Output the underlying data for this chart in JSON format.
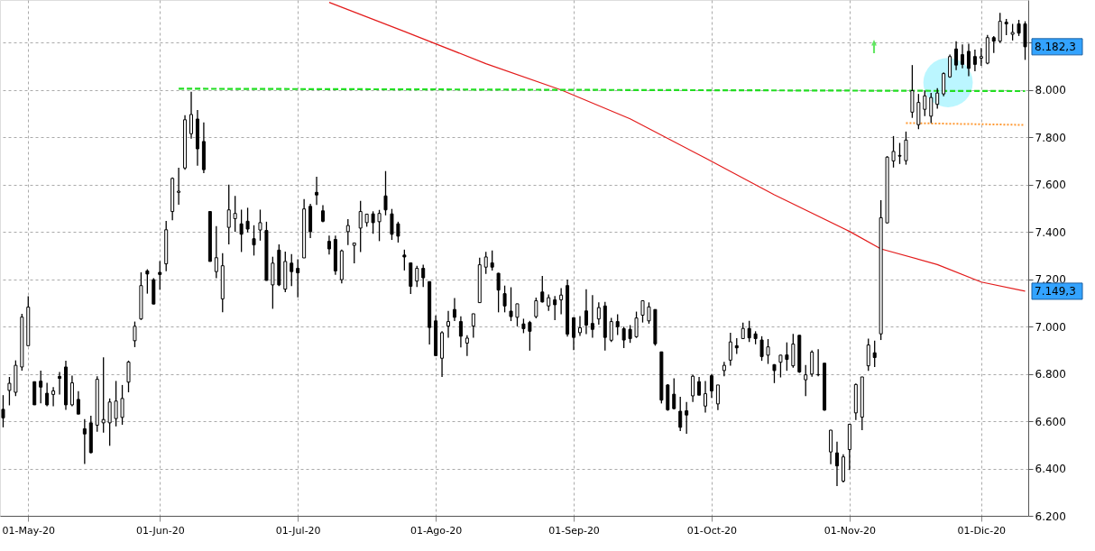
{
  "chart_data": {
    "type": "candlestick",
    "categories": [
      null,
      null,
      null,
      null,
      "01-May-20",
      null,
      null,
      null,
      null,
      null,
      null,
      null,
      null,
      null,
      null,
      null,
      null,
      null,
      null,
      null,
      null,
      null,
      null,
      null,
      null,
      "01-Jun-20",
      null,
      null,
      null,
      null,
      null,
      null,
      null,
      null,
      null,
      null,
      null,
      null,
      null,
      null,
      null,
      null,
      null,
      null,
      null,
      null,
      null,
      "01-Jul-20",
      null,
      null,
      null,
      null,
      null,
      null,
      null,
      null,
      null,
      null,
      null,
      null,
      null,
      null,
      null,
      null,
      null,
      null,
      null,
      null,
      null,
      "01-Ago-20",
      null,
      null,
      null,
      null,
      null,
      null,
      null,
      null,
      null,
      null,
      null,
      null,
      null,
      null,
      null,
      null,
      null,
      null,
      null,
      null,
      null,
      "01-Sep-20",
      null,
      null,
      null,
      null,
      null,
      null,
      null,
      null,
      null,
      null,
      null,
      null,
      null,
      null,
      null,
      null,
      null,
      null,
      null,
      null,
      null,
      "01-Oct-20",
      null,
      null,
      null,
      null,
      null,
      null,
      null,
      null,
      null,
      null,
      null,
      null,
      null,
      null,
      null,
      null,
      null,
      null,
      null,
      null,
      null,
      "01-Nov-20",
      null,
      null,
      null,
      null,
      null,
      null,
      null,
      null,
      null,
      null,
      null,
      null,
      null,
      null,
      null,
      null,
      null,
      null,
      null,
      null,
      "01-Dic-20",
      null,
      null,
      null,
      null,
      null,
      null,
      null
    ],
    "ohlc": [
      [
        6650,
        6710,
        6574,
        6614
      ],
      [
        6730,
        6787,
        6667,
        6760
      ],
      [
        6722,
        6857,
        6706,
        6836
      ],
      [
        6829,
        7054,
        6814,
        7040
      ],
      [
        6919,
        7128,
        6919,
        7082
      ],
      [
        6767,
        6767,
        6669,
        6669
      ],
      [
        6769,
        6814,
        6675,
        6744
      ],
      [
        6718,
        6762,
        6663,
        6669
      ],
      [
        6713,
        6744,
        6663,
        6728
      ],
      [
        6789,
        6808,
        6713,
        6781
      ],
      [
        6829,
        6856,
        6648,
        6669
      ],
      [
        6669,
        6793,
        6663,
        6762
      ],
      [
        6692,
        6727,
        6630,
        6630
      ],
      [
        6568,
        6609,
        6419,
        6546
      ],
      [
        6593,
        6623,
        6464,
        6467
      ],
      [
        6583,
        6790,
        6555,
        6777
      ],
      [
        6593,
        6870,
        6552,
        6607
      ],
      [
        6593,
        6696,
        6496,
        6681
      ],
      [
        6611,
        6770,
        6578,
        6685
      ],
      [
        6616,
        6753,
        6585,
        6696
      ],
      [
        6765,
        6856,
        6722,
        6850
      ],
      [
        6940,
        7021,
        6913,
        7001
      ],
      [
        7032,
        7229,
        7028,
        7173
      ],
      [
        7235,
        7242,
        7139,
        7222
      ],
      [
        7198,
        7204,
        7095,
        7095
      ],
      [
        7229,
        7277,
        7156,
        7220
      ],
      [
        7265,
        7446,
        7234,
        7409
      ],
      [
        7486,
        7630,
        7449,
        7626
      ],
      [
        7567,
        7671,
        7515,
        7572
      ],
      [
        7670,
        7893,
        7663,
        7874
      ],
      [
        7815,
        7992,
        7794,
        7896
      ],
      [
        7877,
        7915,
        7680,
        7751
      ],
      [
        7782,
        7863,
        7648,
        7663
      ],
      [
        7486,
        7486,
        7275,
        7275
      ],
      [
        7232,
        7424,
        7204,
        7291
      ],
      [
        7117,
        7310,
        7060,
        7257
      ],
      [
        7419,
        7600,
        7347,
        7493
      ],
      [
        7456,
        7552,
        7401,
        7478
      ],
      [
        7434,
        7494,
        7315,
        7390
      ],
      [
        7445,
        7502,
        7398,
        7412
      ],
      [
        7371,
        7428,
        7300,
        7345
      ],
      [
        7408,
        7494,
        7363,
        7439
      ],
      [
        7406,
        7443,
        7194,
        7195
      ],
      [
        7176,
        7295,
        7075,
        7268
      ],
      [
        7323,
        7347,
        7171,
        7176
      ],
      [
        7158,
        7317,
        7145,
        7275
      ],
      [
        7268,
        7306,
        7171,
        7232
      ],
      [
        7246,
        7284,
        7123,
        7227
      ],
      [
        7290,
        7539,
        7290,
        7497
      ],
      [
        7508,
        7519,
        7374,
        7401
      ],
      [
        7567,
        7633,
        7514,
        7556
      ],
      [
        7489,
        7513,
        7441,
        7445
      ],
      [
        7360,
        7384,
        7304,
        7328
      ],
      [
        7368,
        7384,
        7219,
        7235
      ],
      [
        7198,
        7325,
        7182,
        7320
      ],
      [
        7401,
        7454,
        7344,
        7427
      ],
      [
        7343,
        7354,
        7267,
        7353
      ],
      [
        7416,
        7531,
        7315,
        7486
      ],
      [
        7439,
        7475,
        7422,
        7475
      ],
      [
        7476,
        7487,
        7392,
        7439
      ],
      [
        7443,
        7493,
        7361,
        7478
      ],
      [
        7552,
        7657,
        7470,
        7493
      ],
      [
        7476,
        7497,
        7366,
        7390
      ],
      [
        7434,
        7443,
        7355,
        7382
      ],
      [
        7302,
        7325,
        7237,
        7294
      ],
      [
        7269,
        7269,
        7138,
        7170
      ],
      [
        7192,
        7257,
        7167,
        7246
      ],
      [
        7246,
        7261,
        7167,
        7206
      ],
      [
        7190,
        7190,
        6924,
        6996
      ],
      [
        7024,
        7047,
        6876,
        6877
      ],
      [
        6866,
        6980,
        6787,
        6974
      ],
      [
        7002,
        7066,
        6953,
        7021
      ],
      [
        7072,
        7120,
        7023,
        7039
      ],
      [
        7021,
        7043,
        6912,
        6959
      ],
      [
        6930,
        6963,
        6876,
        6951
      ],
      [
        7002,
        7054,
        6953,
        7054
      ],
      [
        7101,
        7291,
        7101,
        7261
      ],
      [
        7251,
        7316,
        7222,
        7294
      ],
      [
        7269,
        7321,
        7237,
        7251
      ],
      [
        7225,
        7227,
        7060,
        7154
      ],
      [
        7139,
        7173,
        7060,
        7087
      ],
      [
        7065,
        7166,
        7023,
        7042
      ],
      [
        7039,
        7096,
        7001,
        7096
      ],
      [
        7011,
        7033,
        6972,
        6991
      ],
      [
        7017,
        7024,
        6898,
        6980
      ],
      [
        7042,
        7122,
        7035,
        7109
      ],
      [
        7146,
        7214,
        7101,
        7104
      ],
      [
        7087,
        7136,
        7066,
        7122
      ],
      [
        7113,
        7129,
        7027,
        7092
      ],
      [
        7113,
        7162,
        7052,
        7133
      ],
      [
        7173,
        7199,
        6957,
        6968
      ],
      [
        7037,
        7039,
        6900,
        6954
      ],
      [
        6974,
        7044,
        6960,
        6995
      ],
      [
        7066,
        7158,
        6968,
        7006
      ],
      [
        7013,
        7133,
        6953,
        6988
      ],
      [
        7032,
        7102,
        7008,
        7080
      ],
      [
        7087,
        7104,
        6898,
        6954
      ],
      [
        6942,
        7037,
        6935,
        7021
      ],
      [
        7021,
        7052,
        6964,
        6999
      ],
      [
        6991,
        6999,
        6909,
        6943
      ],
      [
        6988,
        7006,
        6931,
        6949
      ],
      [
        6957,
        7063,
        6952,
        7036
      ],
      [
        7048,
        7109,
        7017,
        7109
      ],
      [
        7024,
        7102,
        7012,
        7083
      ],
      [
        7072,
        7072,
        6919,
        6927
      ],
      [
        6893,
        6893,
        6675,
        6689
      ],
      [
        6753,
        6756,
        6644,
        6648
      ],
      [
        6714,
        6781,
        6650,
        6653
      ],
      [
        6642,
        6703,
        6558,
        6574
      ],
      [
        6644,
        6681,
        6547,
        6626
      ],
      [
        6707,
        6796,
        6681,
        6790
      ],
      [
        6767,
        6787,
        6710,
        6710
      ],
      [
        6664,
        6770,
        6636,
        6716
      ],
      [
        6792,
        6799,
        6698,
        6728
      ],
      [
        6673,
        6753,
        6647,
        6753
      ],
      [
        6814,
        6851,
        6790,
        6836
      ],
      [
        6858,
        6974,
        6835,
        6935
      ],
      [
        6919,
        6951,
        6884,
        6910
      ],
      [
        6949,
        7017,
        6949,
        6992
      ],
      [
        6992,
        7024,
        6935,
        6952
      ],
      [
        6969,
        6980,
        6925,
        6949
      ],
      [
        6943,
        6959,
        6855,
        6873
      ],
      [
        6879,
        6947,
        6842,
        6914
      ],
      [
        6839,
        6841,
        6761,
        6814
      ],
      [
        6849,
        6880,
        6785,
        6879
      ],
      [
        6880,
        6933,
        6813,
        6861
      ],
      [
        6834,
        6969,
        6826,
        6926
      ],
      [
        6963,
        6963,
        6804,
        6808
      ],
      [
        6775,
        6837,
        6706,
        6796
      ],
      [
        6799,
        6899,
        6788,
        6892
      ],
      [
        6797,
        6904,
        6790,
        6796
      ],
      [
        6845,
        6845,
        6644,
        6647
      ],
      [
        6470,
        6563,
        6418,
        6562
      ],
      [
        6466,
        6513,
        6326,
        6411
      ],
      [
        6347,
        6460,
        6341,
        6449
      ],
      [
        6480,
        6589,
        6393,
        6587
      ],
      [
        6635,
        6759,
        6605,
        6755
      ],
      [
        6617,
        6787,
        6562,
        6787
      ],
      [
        6834,
        6949,
        6813,
        6922
      ],
      [
        6889,
        6940,
        6829,
        6869
      ],
      [
        6969,
        7534,
        6943,
        7460
      ],
      [
        7438,
        7720,
        7437,
        7716
      ],
      [
        7700,
        7805,
        7672,
        7740
      ],
      [
        7720,
        7776,
        7687,
        7723
      ],
      [
        7701,
        7824,
        7684,
        7788
      ],
      [
        7906,
        8105,
        7882,
        7997
      ],
      [
        7853,
        7983,
        7834,
        7947
      ],
      [
        7918,
        7997,
        7889,
        7975
      ],
      [
        7889,
        7987,
        7860,
        7968
      ],
      [
        7939,
        8007,
        7921,
        7987
      ],
      [
        7983,
        8074,
        7973,
        8069
      ],
      [
        8055,
        8149,
        8051,
        8141
      ],
      [
        8173,
        8206,
        8084,
        8105
      ],
      [
        8149,
        8192,
        8091,
        8108
      ],
      [
        8163,
        8195,
        8058,
        8091
      ],
      [
        8141,
        8170,
        8079,
        8108
      ],
      [
        8134,
        8177,
        8102,
        8141
      ],
      [
        8113,
        8232,
        8108,
        8221
      ],
      [
        8221,
        8228,
        8156,
        8206
      ],
      [
        8206,
        8326,
        8199,
        8290
      ],
      [
        8286,
        8300,
        8231,
        8279
      ],
      [
        8235,
        8279,
        8209,
        8243
      ],
      [
        8279,
        8296,
        8228,
        8240
      ],
      [
        8279,
        8290,
        8127,
        8182.3
      ]
    ],
    "series": [
      {
        "type": "line",
        "color": "#e31b1b",
        "line_style": "solid",
        "values": [
          null,
          null,
          null,
          null,
          null,
          null,
          null,
          null,
          null,
          null,
          null,
          null,
          null,
          null,
          null,
          null,
          null,
          null,
          null,
          null,
          null,
          null,
          null,
          null,
          null,
          null,
          null,
          null,
          null,
          null,
          null,
          null,
          null,
          null,
          null,
          null,
          null,
          null,
          null,
          null,
          null,
          null,
          null,
          null,
          null,
          null,
          null,
          null,
          null,
          null,
          null,
          null,
          8370,
          null,
          null,
          null,
          null,
          null,
          null,
          null,
          null,
          null,
          null,
          null,
          8247,
          null,
          null,
          null,
          null,
          null,
          null,
          null,
          null,
          null,
          null,
          null,
          null,
          8111,
          null,
          null,
          null,
          null,
          null,
          null,
          null,
          null,
          null,
          null,
          null,
          8000,
          null,
          null,
          null,
          null,
          null,
          null,
          null,
          null,
          null,
          null,
          7878,
          null,
          null,
          null,
          null,
          null,
          null,
          null,
          null,
          null,
          null,
          null,
          7712,
          null,
          null,
          null,
          null,
          null,
          null,
          null,
          null,
          null,
          null,
          7557,
          null,
          null,
          null,
          null,
          null,
          null,
          null,
          null,
          null,
          null,
          null,
          7402,
          null,
          null,
          null,
          null,
          7328,
          null,
          null,
          null,
          null,
          null,
          null,
          null,
          null,
          7262,
          null,
          null,
          null,
          null,
          null,
          null,
          7188,
          null,
          null,
          null,
          null,
          null,
          null,
          7149.3
        ]
      },
      {
        "type": "line",
        "color": "#22dd22",
        "line_style": "dashed",
        "values": [
          null,
          null,
          null,
          null,
          null,
          null,
          null,
          null,
          null,
          null,
          null,
          null,
          null,
          null,
          null,
          null,
          null,
          null,
          null,
          null,
          null,
          null,
          null,
          null,
          null,
          null,
          null,
          null,
          8005,
          null,
          null,
          null,
          null,
          null,
          null,
          null,
          null,
          null,
          null,
          null,
          null,
          null,
          null,
          null,
          null,
          null,
          null,
          null,
          null,
          null,
          null,
          null,
          null,
          null,
          null,
          null,
          null,
          null,
          null,
          null,
          null,
          null,
          null,
          null,
          null,
          null,
          null,
          null,
          null,
          null,
          null,
          null,
          null,
          null,
          null,
          null,
          null,
          null,
          null,
          null,
          null,
          null,
          null,
          null,
          null,
          null,
          null,
          null,
          null,
          null,
          null,
          null,
          null,
          null,
          null,
          null,
          null,
          null,
          null,
          null,
          null,
          null,
          null,
          null,
          null,
          null,
          null,
          null,
          null,
          null,
          null,
          null,
          null,
          null,
          null,
          null,
          null,
          null,
          null,
          null,
          null,
          null,
          null,
          null,
          null,
          null,
          null,
          null,
          null,
          null,
          null,
          null,
          null,
          null,
          null,
          null,
          null,
          null,
          null,
          null,
          null,
          null,
          null,
          null,
          null,
          null,
          null,
          null,
          null,
          null,
          null,
          null,
          null,
          null,
          null,
          null,
          null,
          null,
          null,
          null,
          null,
          null,
          null,
          7995
        ]
      },
      {
        "type": "line",
        "color": "#ff9933",
        "line_style": "dotted",
        "values": [
          null,
          null,
          null,
          null,
          null,
          null,
          null,
          null,
          null,
          null,
          null,
          null,
          null,
          null,
          null,
          null,
          null,
          null,
          null,
          null,
          null,
          null,
          null,
          null,
          null,
          null,
          null,
          null,
          null,
          null,
          null,
          null,
          null,
          null,
          null,
          null,
          null,
          null,
          null,
          null,
          null,
          null,
          null,
          null,
          null,
          null,
          null,
          null,
          null,
          null,
          null,
          null,
          null,
          null,
          null,
          null,
          null,
          null,
          null,
          null,
          null,
          null,
          null,
          null,
          null,
          null,
          null,
          null,
          null,
          null,
          null,
          null,
          null,
          null,
          null,
          null,
          null,
          null,
          null,
          null,
          null,
          null,
          null,
          null,
          null,
          null,
          null,
          null,
          null,
          null,
          null,
          null,
          null,
          null,
          null,
          null,
          null,
          null,
          null,
          null,
          null,
          null,
          null,
          null,
          null,
          null,
          null,
          null,
          null,
          null,
          null,
          null,
          null,
          null,
          null,
          null,
          null,
          null,
          null,
          null,
          null,
          null,
          null,
          null,
          null,
          null,
          null,
          null,
          null,
          null,
          null,
          null,
          null,
          null,
          null,
          null,
          null,
          null,
          null,
          null,
          null,
          null,
          null,
          null,
          7860,
          null,
          null,
          null,
          null,
          null,
          null,
          null,
          null,
          null,
          null,
          null,
          null,
          null,
          null,
          null,
          null,
          null,
          null,
          7852
        ]
      }
    ],
    "ylim": [
      6200,
      8380
    ],
    "yticks": [
      {
        "value": 6200,
        "label": "6.200"
      },
      {
        "value": 6400,
        "label": "6.400"
      },
      {
        "value": 6600,
        "label": "6.600"
      },
      {
        "value": 6800,
        "label": "6.800"
      },
      {
        "value": 7000,
        "label": "7.000"
      },
      {
        "value": 7200,
        "label": "7.200"
      },
      {
        "value": 7400,
        "label": "7.400"
      },
      {
        "value": 7600,
        "label": "7.600"
      },
      {
        "value": 7800,
        "label": "7.800"
      },
      {
        "value": 8000,
        "label": "8.000"
      },
      {
        "value": 8200,
        "label": null
      }
    ],
    "grid": true,
    "annotations": [
      "8.182,3",
      "7.149,3"
    ]
  }
}
